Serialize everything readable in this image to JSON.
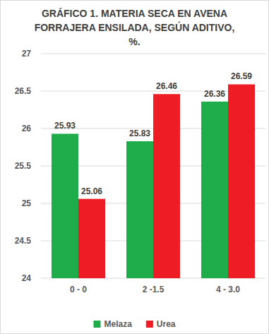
{
  "chart_data": {
    "type": "bar",
    "title": "GRÁFICO 1. MATERIA SECA EN AVENA FORRAJERA ENSILADA, SEGÚN ADITIVO, %.",
    "categories": [
      "0 - 0",
      "2 -1.5",
      "4 - 3.0"
    ],
    "series": [
      {
        "name": "Melaza",
        "color": "#1fad4b",
        "values": [
          25.93,
          25.83,
          26.36
        ]
      },
      {
        "name": "Urea",
        "color": "#ee1c24",
        "values": [
          25.06,
          26.46,
          26.59
        ]
      }
    ],
    "ylim": [
      24,
      27
    ],
    "yticks": [
      24,
      24.5,
      25,
      25.5,
      26,
      26.5,
      27
    ],
    "grid": true,
    "data_labels": true,
    "legend": "bottom"
  }
}
